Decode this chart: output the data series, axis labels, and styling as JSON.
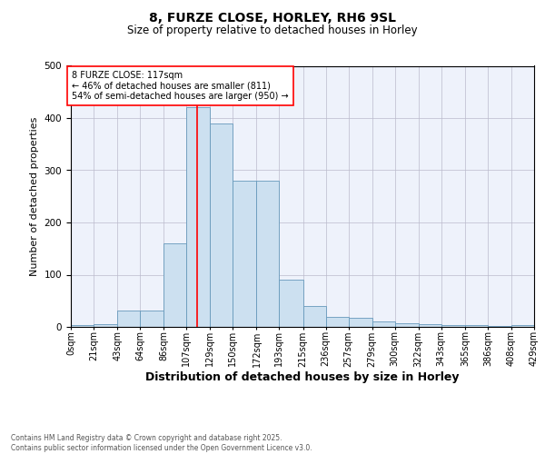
{
  "title": "8, FURZE CLOSE, HORLEY, RH6 9SL",
  "subtitle": "Size of property relative to detached houses in Horley",
  "xlabel": "Distribution of detached houses by size in Horley",
  "ylabel": "Number of detached properties",
  "bar_edges": [
    0,
    21,
    43,
    64,
    86,
    107,
    129,
    150,
    172,
    193,
    215,
    236,
    257,
    279,
    300,
    322,
    343,
    365,
    386,
    408,
    429
  ],
  "bar_heights": [
    3,
    5,
    32,
    32,
    160,
    420,
    390,
    280,
    280,
    90,
    40,
    20,
    17,
    10,
    7,
    5,
    4,
    3,
    2,
    3
  ],
  "bar_color": "#cce0f0",
  "bar_edge_color": "#6699bb",
  "highlight_x": 117,
  "highlight_color": "red",
  "annotation_line1": "8 FURZE CLOSE: 117sqm",
  "annotation_line2": "← 46% of detached houses are smaller (811)",
  "annotation_line3": "54% of semi-detached houses are larger (950) →",
  "ylim": [
    0,
    500
  ],
  "xlim": [
    0,
    429
  ],
  "background_color": "#eef2fb",
  "grid_color": "#bbbbcc",
  "footer_text": "Contains HM Land Registry data © Crown copyright and database right 2025.\nContains public sector information licensed under the Open Government Licence v3.0.",
  "tick_labels": [
    "0sqm",
    "21sqm",
    "43sqm",
    "64sqm",
    "86sqm",
    "107sqm",
    "129sqm",
    "150sqm",
    "172sqm",
    "193sqm",
    "215sqm",
    "236sqm",
    "257sqm",
    "279sqm",
    "300sqm",
    "322sqm",
    "343sqm",
    "365sqm",
    "386sqm",
    "408sqm",
    "429sqm"
  ],
  "title_fontsize": 10,
  "subtitle_fontsize": 8.5,
  "ylabel_fontsize": 8,
  "xlabel_fontsize": 9,
  "tick_fontsize": 7,
  "annotation_fontsize": 7,
  "footer_fontsize": 5.5
}
